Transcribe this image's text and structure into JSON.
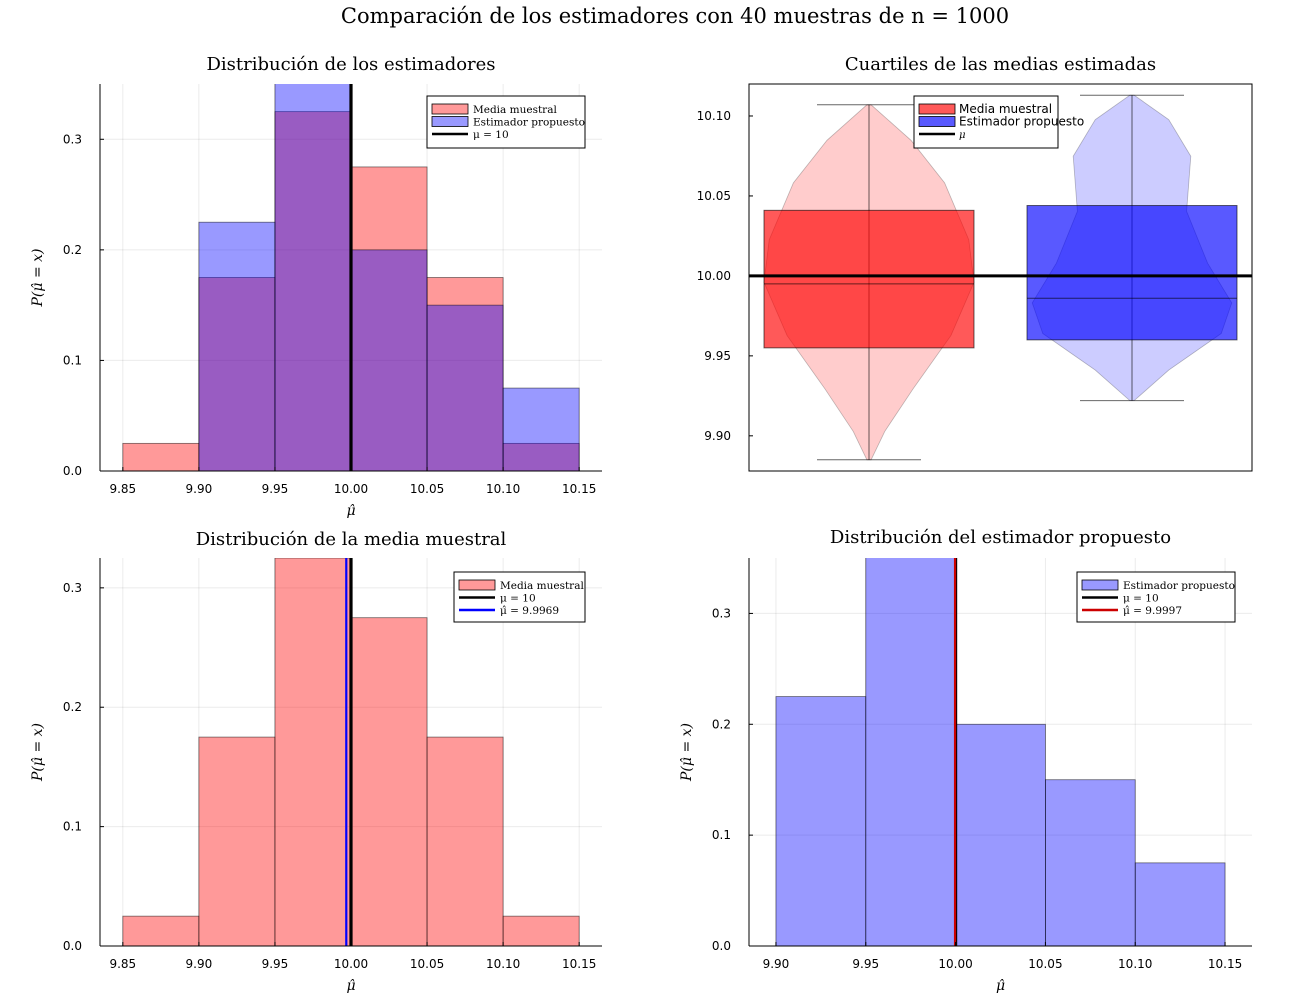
{
  "figure_title": "Comparación de los estimadores con 40 muestras de n = 1000",
  "colors": {
    "red": "#ff0000",
    "blue": "#0000ff",
    "black": "#000000",
    "purple": "#8e4fc0",
    "dark_red": "#cc0000"
  },
  "chart_data": [
    {
      "type": "bar",
      "title": "Distribución de los estimadores",
      "xlabel": "μ̂",
      "ylabel": "P(μ̂ = x)",
      "xlim": [
        9.835,
        10.165
      ],
      "ylim": [
        0,
        0.35
      ],
      "xticks": [
        9.85,
        9.9,
        9.95,
        10.0,
        10.05,
        10.1,
        10.15
      ],
      "xtick_labels": [
        "9.85",
        "9.90",
        "9.95",
        "10.00",
        "10.05",
        "10.10",
        "10.15"
      ],
      "yticks": [
        0,
        0.1,
        0.2,
        0.3
      ],
      "ytick_labels": [
        "0.0",
        "0.1",
        "0.2",
        "0.3"
      ],
      "bin_edges": [
        9.85,
        9.9,
        9.95,
        10.0,
        10.05,
        10.1,
        10.15
      ],
      "series": [
        {
          "name": "Media muestral",
          "color": "#ff0000",
          "values": [
            0.025,
            0.175,
            0.325,
            0.275,
            0.175,
            0.025
          ]
        },
        {
          "name": "Estimador propuesto",
          "color": "#0000ff",
          "values": [
            0.0,
            0.225,
            0.375,
            0.2,
            0.15,
            0.075
          ]
        }
      ],
      "vlines": [
        {
          "name": "μ = 10",
          "x": 10.0,
          "color": "#000000"
        }
      ],
      "legend": "top-right",
      "grid": true
    },
    {
      "type": "box",
      "title": "Cuartiles de las medias estimadas",
      "ylim": [
        9.878,
        10.12
      ],
      "yticks": [
        9.9,
        9.95,
        10.0,
        10.05,
        10.1
      ],
      "ytick_labels": [
        "9.90",
        "9.95",
        "10.00",
        "10.05",
        "10.10"
      ],
      "series": [
        {
          "name": "Media muestral",
          "color": "#ff0000",
          "min": 9.885,
          "q1": 9.955,
          "median": 9.995,
          "q3": 10.041,
          "max": 10.107
        },
        {
          "name": "Estimador propuesto",
          "color": "#0000ff",
          "min": 9.922,
          "q1": 9.96,
          "median": 9.986,
          "q3": 10.044,
          "max": 10.113
        }
      ],
      "hlines": [
        {
          "name": "μ",
          "y": 10.0,
          "color": "#000000"
        }
      ],
      "legend": "top-right",
      "grid": false
    },
    {
      "type": "bar",
      "title": "Distribución de la media muestral",
      "xlabel": "μ̂",
      "ylabel": "P(μ̂ = x)",
      "xlim": [
        9.835,
        10.165
      ],
      "ylim": [
        0,
        0.325
      ],
      "xticks": [
        9.85,
        9.9,
        9.95,
        10.0,
        10.05,
        10.1,
        10.15
      ],
      "xtick_labels": [
        "9.85",
        "9.90",
        "9.95",
        "10.00",
        "10.05",
        "10.10",
        "10.15"
      ],
      "yticks": [
        0,
        0.1,
        0.2,
        0.3
      ],
      "ytick_labels": [
        "0.0",
        "0.1",
        "0.2",
        "0.3"
      ],
      "bin_edges": [
        9.85,
        9.9,
        9.95,
        10.0,
        10.05,
        10.1,
        10.15
      ],
      "series": [
        {
          "name": "Media muestral",
          "color": "#ff0000",
          "values": [
            0.025,
            0.175,
            0.325,
            0.275,
            0.175,
            0.025
          ]
        }
      ],
      "vlines": [
        {
          "name": "μ = 10",
          "x": 10.0,
          "color": "#000000"
        },
        {
          "name": "μ̂ = 9.9969",
          "x": 9.9969,
          "color": "#0000ff"
        }
      ],
      "legend": "top-right",
      "grid": true
    },
    {
      "type": "bar",
      "title": "Distribución del estimador propuesto",
      "xlabel": "μ̂",
      "ylabel": "P(μ̂ = x)",
      "xlim": [
        9.885,
        10.165
      ],
      "ylim": [
        0,
        0.35
      ],
      "xticks": [
        9.9,
        9.95,
        10.0,
        10.05,
        10.1,
        10.15
      ],
      "xtick_labels": [
        "9.90",
        "9.95",
        "10.00",
        "10.05",
        "10.10",
        "10.15"
      ],
      "yticks": [
        0,
        0.1,
        0.2,
        0.3
      ],
      "ytick_labels": [
        "0.0",
        "0.1",
        "0.2",
        "0.3"
      ],
      "bin_edges": [
        9.9,
        9.95,
        10.0,
        10.05,
        10.1,
        10.15
      ],
      "series": [
        {
          "name": "Estimador propuesto",
          "color": "#0000ff",
          "values": [
            0.225,
            0.375,
            0.2,
            0.15,
            0.075
          ]
        }
      ],
      "vlines": [
        {
          "name": "μ = 10",
          "x": 10.0,
          "color": "#000000"
        },
        {
          "name": "μ̂ = 9.9997",
          "x": 9.9997,
          "color": "#cc0000"
        }
      ],
      "legend": "top-right",
      "grid": true
    }
  ]
}
